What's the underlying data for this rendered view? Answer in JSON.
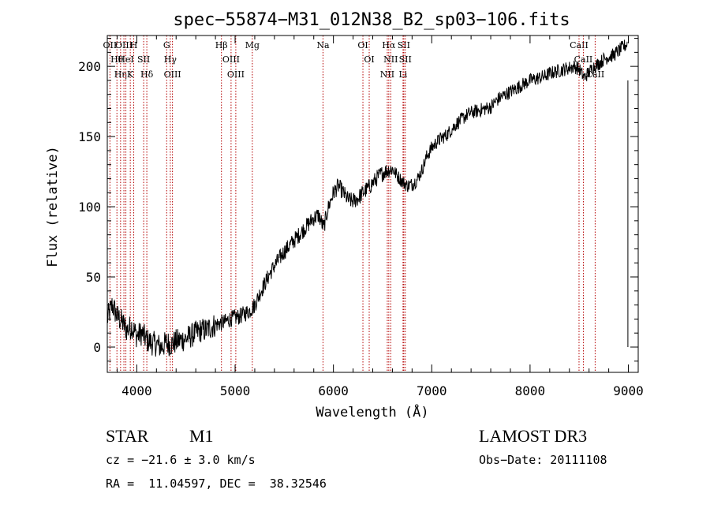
{
  "chart_data": {
    "type": "line",
    "title": "spec−55874−M31_012N38_B2_sp03−106.fits",
    "xlabel": "Wavelength (Å)",
    "ylabel": "Flux (relative)",
    "xlim": [
      3700,
      9100
    ],
    "ylim": [
      -18,
      222
    ],
    "xticks": [
      4000,
      5000,
      6000,
      7000,
      8000,
      9000
    ],
    "yticks": [
      0,
      50,
      100,
      150,
      200
    ],
    "grid": false,
    "line_color": "#000000",
    "line_marker_color": "#b40000",
    "series": [
      {
        "name": "flux",
        "x": [
          3700,
          3750,
          3800,
          3850,
          3900,
          3950,
          4000,
          4050,
          4100,
          4150,
          4200,
          4250,
          4300,
          4350,
          4400,
          4450,
          4500,
          4550,
          4600,
          4650,
          4700,
          4750,
          4800,
          4850,
          4900,
          4950,
          5000,
          5050,
          5100,
          5150,
          5200,
          5250,
          5300,
          5350,
          5400,
          5450,
          5500,
          5550,
          5600,
          5650,
          5700,
          5750,
          5800,
          5850,
          5900,
          5950,
          6000,
          6050,
          6100,
          6150,
          6200,
          6250,
          6300,
          6350,
          6400,
          6450,
          6500,
          6550,
          6600,
          6650,
          6700,
          6750,
          6800,
          6850,
          6900,
          6950,
          7000,
          7050,
          7100,
          7150,
          7200,
          7250,
          7300,
          7350,
          7400,
          7450,
          7500,
          7550,
          7600,
          7650,
          7700,
          7750,
          7800,
          7850,
          7900,
          7950,
          8000,
          8050,
          8100,
          8150,
          8200,
          8250,
          8300,
          8350,
          8400,
          8450,
          8500,
          8550,
          8600,
          8650,
          8700,
          8750,
          8800,
          8850,
          8900,
          8950,
          8990
        ],
        "y": [
          20,
          30,
          22,
          18,
          12,
          15,
          8,
          10,
          5,
          3,
          2,
          0,
          3,
          2,
          4,
          5,
          6,
          8,
          10,
          12,
          12,
          14,
          16,
          17,
          18,
          20,
          21,
          22,
          24,
          26,
          30,
          38,
          45,
          52,
          58,
          63,
          68,
          72,
          76,
          80,
          84,
          88,
          92,
          94,
          85,
          100,
          110,
          115,
          110,
          105,
          104,
          106,
          110,
          113,
          117,
          121,
          124,
          126,
          127,
          122,
          118,
          115,
          116,
          119,
          126,
          136,
          142,
          146,
          149,
          151,
          155,
          159,
          162,
          165,
          167,
          168,
          169,
          170,
          171,
          175,
          178,
          180,
          182,
          184,
          186,
          188,
          190,
          191,
          192,
          193,
          195,
          196,
          197,
          198,
          199,
          200,
          198,
          192,
          196,
          200,
          202,
          205,
          207,
          208,
          211,
          214,
          216
        ]
      }
    ],
    "lines": [
      {
        "wl": 3727,
        "label": "OII"
      },
      {
        "wl": 3798,
        "label": "Hθ"
      },
      {
        "wl": 3835,
        "label": "Hη"
      },
      {
        "wl": 3869,
        "label": "OIII"
      },
      {
        "wl": 3889,
        "label": "HeI"
      },
      {
        "wl": 3934,
        "label": "K"
      },
      {
        "wl": 3969,
        "label": "H"
      },
      {
        "wl": 4070,
        "label": "SII"
      },
      {
        "wl": 4102,
        "label": "Hδ"
      },
      {
        "wl": 4304,
        "label": "G"
      },
      {
        "wl": 4341,
        "label": "Hγ"
      },
      {
        "wl": 4363,
        "label": "OIII"
      },
      {
        "wl": 4861,
        "label": "Hβ"
      },
      {
        "wl": 4959,
        "label": "OIII"
      },
      {
        "wl": 5007,
        "label": "OIII"
      },
      {
        "wl": 5175,
        "label": "Mg"
      },
      {
        "wl": 5894,
        "label": "Na"
      },
      {
        "wl": 6300,
        "label": "OI"
      },
      {
        "wl": 6364,
        "label": "OI"
      },
      {
        "wl": 6548,
        "label": "NII"
      },
      {
        "wl": 6563,
        "label": "Hα"
      },
      {
        "wl": 6583,
        "label": "NII"
      },
      {
        "wl": 6708,
        "label": "Li"
      },
      {
        "wl": 6716,
        "label": "SII"
      },
      {
        "wl": 6731,
        "label": "SII"
      },
      {
        "wl": 8498,
        "label": "CaII"
      },
      {
        "wl": 8542,
        "label": "CaII"
      },
      {
        "wl": 8662,
        "label": "CaII"
      }
    ]
  },
  "info": {
    "class": "STAR",
    "subclass": "M1",
    "survey": "LAMOST DR3",
    "cz": "cz = −21.6 ± 3.0 km/s",
    "obs_date": "Obs−Date: 20111108",
    "coords": "RA =  11.04597, DEC =  38.32546"
  }
}
